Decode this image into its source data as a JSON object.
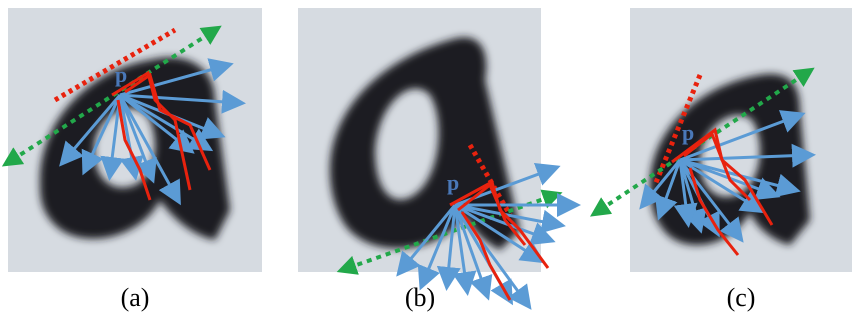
{
  "panels": [
    {
      "point_label": "p",
      "caption": "(a)"
    },
    {
      "point_label": "p",
      "caption": "(b)"
    },
    {
      "point_label": "p",
      "caption": "(c)"
    }
  ]
}
